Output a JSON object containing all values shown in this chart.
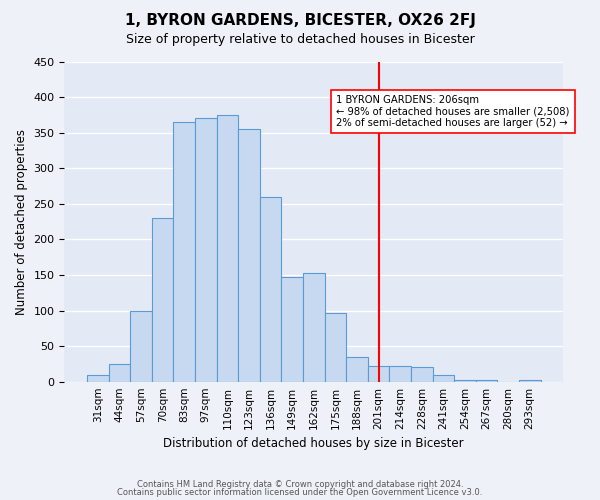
{
  "title": "1, BYRON GARDENS, BICESTER, OX26 2FJ",
  "subtitle": "Size of property relative to detached houses in Bicester",
  "xlabel": "Distribution of detached houses by size in Bicester",
  "ylabel": "Number of detached properties",
  "bin_labels": [
    "31sqm",
    "44sqm",
    "57sqm",
    "70sqm",
    "83sqm",
    "97sqm",
    "110sqm",
    "123sqm",
    "136sqm",
    "149sqm",
    "162sqm",
    "175sqm",
    "188sqm",
    "201sqm",
    "214sqm",
    "228sqm",
    "241sqm",
    "254sqm",
    "267sqm",
    "280sqm",
    "293sqm"
  ],
  "bar_heights": [
    10,
    25,
    100,
    230,
    365,
    370,
    375,
    355,
    260,
    147,
    153,
    97,
    35,
    22,
    22,
    20,
    10,
    2,
    2,
    0,
    2
  ],
  "bar_color": "#c6d9f0",
  "bar_edge_color": "#5b9bd5",
  "ylim": [
    0,
    450
  ],
  "yticks": [
    0,
    50,
    100,
    150,
    200,
    250,
    300,
    350,
    400,
    450
  ],
  "marker_line_bin_index": 13,
  "annotation_text_line1": "1 BYRON GARDENS: 206sqm",
  "annotation_text_line2": "← 98% of detached houses are smaller (2,508)",
  "annotation_text_line3": "2% of semi-detached houses are larger (52) →",
  "footer_line1": "Contains HM Land Registry data © Crown copyright and database right 2024.",
  "footer_line2": "Contains public sector information licensed under the Open Government Licence v3.0.",
  "background_color": "#eef2f8",
  "plot_background_color": "#e4eaf5"
}
